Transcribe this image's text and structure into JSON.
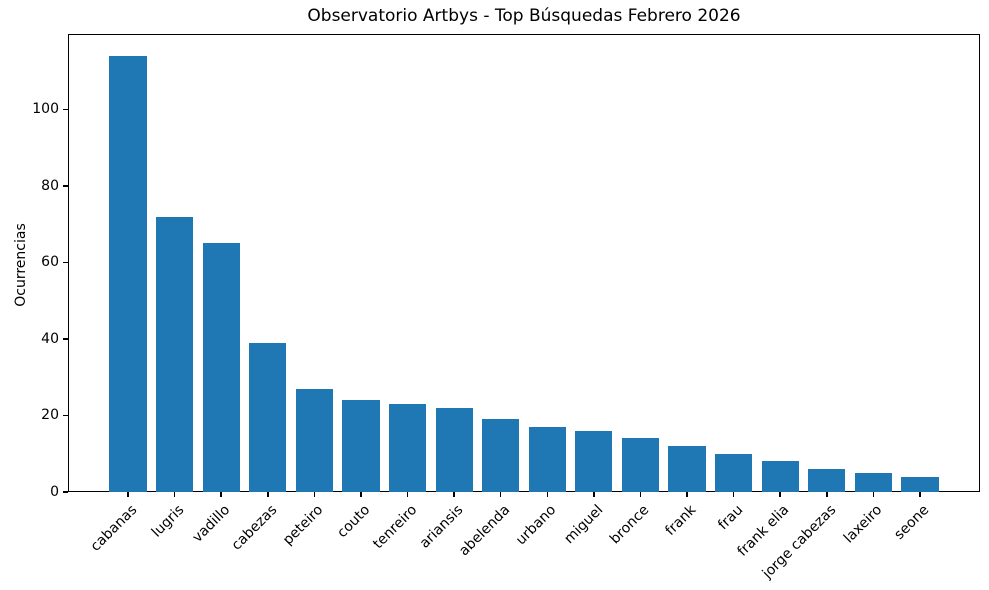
{
  "chart_data": {
    "type": "bar",
    "title": "Observatorio Artbys - Top Búsquedas Febrero 2026",
    "xlabel": "",
    "ylabel": "Ocurrencias",
    "categories": [
      "cabanas",
      "lugris",
      "vadillo",
      "cabezas",
      "peteiro",
      "couto",
      "tenreiro",
      "ariansis",
      "abelenda",
      "urbano",
      "miguel",
      "bronce",
      "frank",
      "frau",
      "frank elia",
      "jorge cabezas",
      "laxeiro",
      "seone"
    ],
    "values": [
      114,
      72,
      65,
      39,
      27,
      24,
      23,
      22,
      19,
      17,
      16,
      14,
      12,
      10,
      8,
      6,
      5,
      4
    ],
    "yticks": [
      0,
      20,
      40,
      60,
      80,
      100
    ],
    "ylim": [
      0,
      119.7
    ],
    "bar_color": "#1f77b4",
    "grid": false,
    "legend_position": "none"
  }
}
